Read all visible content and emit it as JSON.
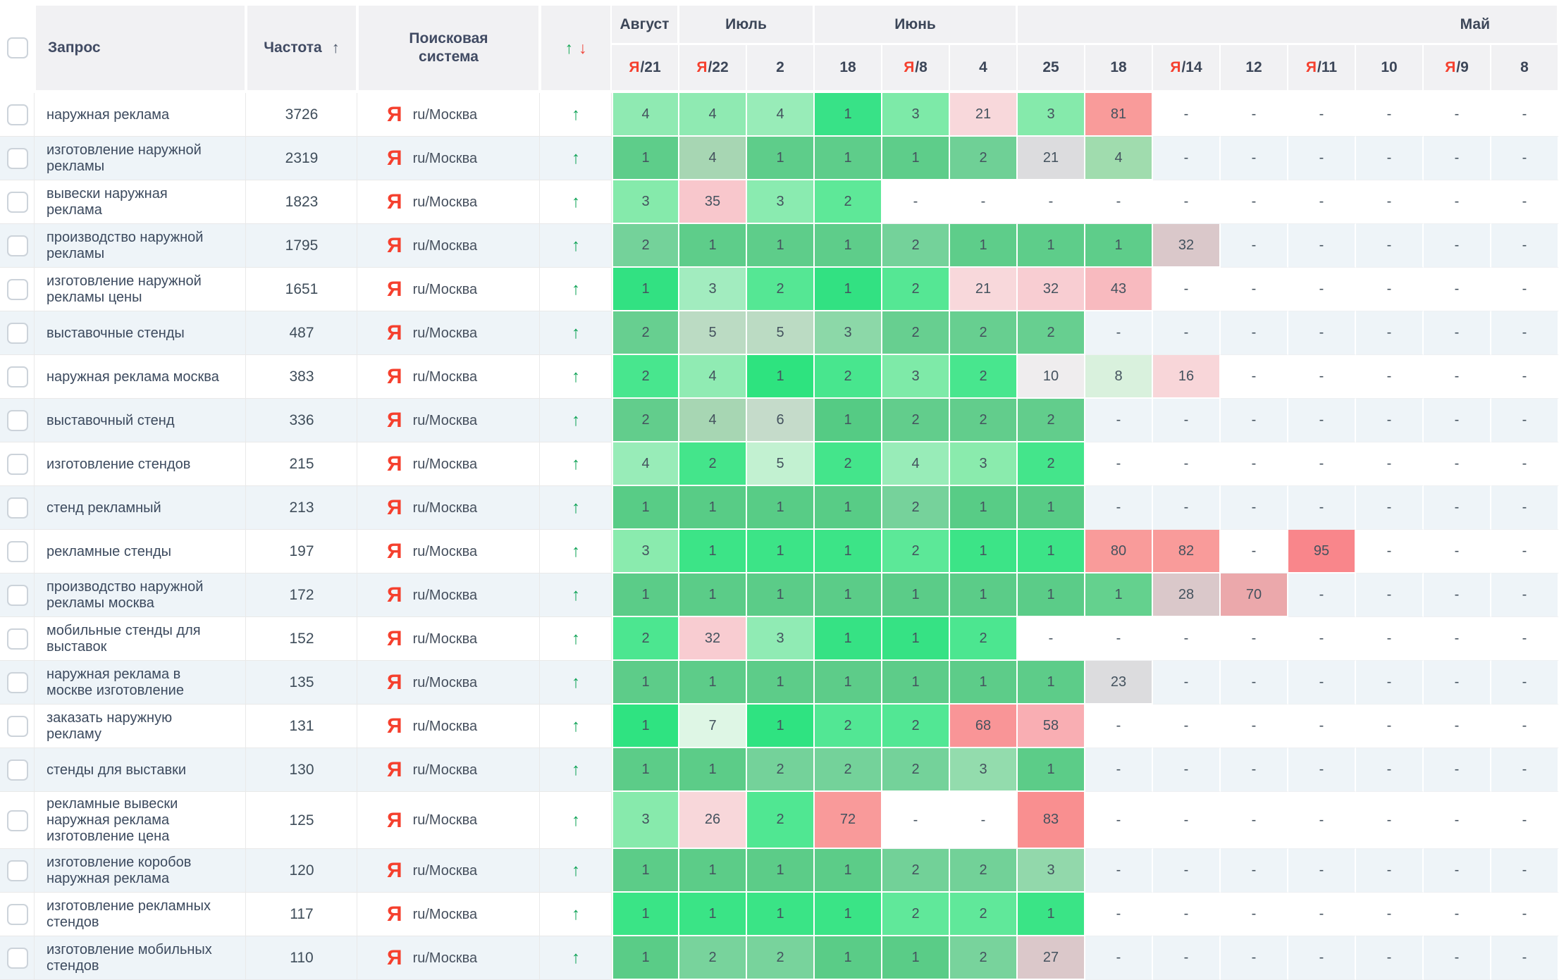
{
  "header": {
    "query": "Запрос",
    "frequency": "Частота",
    "sort_arrow": "↑",
    "engine": "Поисковая система",
    "trend_up": "↑",
    "trend_down": "↓",
    "months": [
      {
        "label": "Август",
        "span": 1
      },
      {
        "label": "Июль",
        "span": 2
      },
      {
        "label": "Июнь",
        "span": 3
      },
      {
        "label": "Май",
        "span": 8
      }
    ],
    "dates": [
      {
        "yandex": true,
        "day": "21"
      },
      {
        "yandex": true,
        "day": "22"
      },
      {
        "yandex": false,
        "day": "2"
      },
      {
        "yandex": false,
        "day": "18"
      },
      {
        "yandex": true,
        "day": "8"
      },
      {
        "yandex": false,
        "day": "4"
      },
      {
        "yandex": false,
        "day": "25"
      },
      {
        "yandex": false,
        "day": "18"
      },
      {
        "yandex": true,
        "day": "14"
      },
      {
        "yandex": false,
        "day": "12"
      },
      {
        "yandex": true,
        "day": "11"
      },
      {
        "yandex": false,
        "day": "10"
      },
      {
        "yandex": true,
        "day": "9"
      },
      {
        "yandex": false,
        "day": "8"
      }
    ]
  },
  "row_defaults": {
    "engine_icon": "Я",
    "engine_label": "ru/Москва",
    "trend": "↑",
    "empty": "-"
  },
  "colors": {
    "yandex_red": "#f5402e",
    "trend_green": "#0aa153",
    "header_bg": "#f1f1f3",
    "stripe": "#eef4f8",
    "salmon": "#f99b9a",
    "gray_cell": "#dcdcde"
  },
  "rows": [
    {
      "query": "наружная реклама",
      "frequency": "3726",
      "cells": [
        {
          "v": "4",
          "bg": "#8feab2"
        },
        {
          "v": "4",
          "bg": "#8feab2"
        },
        {
          "v": "4",
          "bg": "#98ecb8"
        },
        {
          "v": "1",
          "bg": "#38e287"
        },
        {
          "v": "3",
          "bg": "#7deaa8"
        },
        {
          "v": "21",
          "bg": "#f8d8db"
        },
        {
          "v": "3",
          "bg": "#85eaab"
        },
        {
          "v": "81",
          "bg": "#f99b9a"
        },
        {
          "v": "-"
        },
        {
          "v": "-"
        },
        {
          "v": "-"
        },
        {
          "v": "-"
        },
        {
          "v": "-"
        },
        {
          "v": "-"
        }
      ]
    },
    {
      "query": "изготовление наружной рекламы",
      "frequency": "2319",
      "cells": [
        {
          "v": "1",
          "bg": "#5ecd8a"
        },
        {
          "v": "4",
          "bg": "#a7d6b3"
        },
        {
          "v": "1",
          "bg": "#5ecd8a"
        },
        {
          "v": "1",
          "bg": "#5ecd8a"
        },
        {
          "v": "1",
          "bg": "#5ecd8a"
        },
        {
          "v": "2",
          "bg": "#6fd096"
        },
        {
          "v": "21",
          "bg": "#dcdcde"
        },
        {
          "v": "4",
          "bg": "#a0dcae"
        },
        {
          "v": "-"
        },
        {
          "v": "-"
        },
        {
          "v": "-"
        },
        {
          "v": "-"
        },
        {
          "v": "-"
        },
        {
          "v": "-"
        }
      ]
    },
    {
      "query": "вывески наружная реклама",
      "frequency": "1823",
      "cells": [
        {
          "v": "3",
          "bg": "#85eaab"
        },
        {
          "v": "35",
          "bg": "#f8c7cc"
        },
        {
          "v": "3",
          "bg": "#8aebb0"
        },
        {
          "v": "2",
          "bg": "#5ee898"
        },
        {
          "v": "-"
        },
        {
          "v": "-"
        },
        {
          "v": "-"
        },
        {
          "v": "-"
        },
        {
          "v": "-"
        },
        {
          "v": "-"
        },
        {
          "v": "-"
        },
        {
          "v": "-"
        },
        {
          "v": "-"
        },
        {
          "v": "-"
        }
      ]
    },
    {
      "query": "производство наружной рекламы",
      "frequency": "1795",
      "cells": [
        {
          "v": "2",
          "bg": "#74d29a"
        },
        {
          "v": "1",
          "bg": "#5ecd8a"
        },
        {
          "v": "1",
          "bg": "#5ecd8a"
        },
        {
          "v": "1",
          "bg": "#5ecd8a"
        },
        {
          "v": "2",
          "bg": "#74d29a"
        },
        {
          "v": "1",
          "bg": "#5ecd8a"
        },
        {
          "v": "1",
          "bg": "#5ecd8a"
        },
        {
          "v": "1",
          "bg": "#5ecd8a"
        },
        {
          "v": "32",
          "bg": "#dac8ca"
        },
        {
          "v": "-"
        },
        {
          "v": "-"
        },
        {
          "v": "-"
        },
        {
          "v": "-"
        },
        {
          "v": "-"
        }
      ]
    },
    {
      "query": "изготовление наружной рекламы цены",
      "frequency": "1651",
      "cells": [
        {
          "v": "1",
          "bg": "#32e182"
        },
        {
          "v": "3",
          "bg": "#a2ecbf"
        },
        {
          "v": "2",
          "bg": "#55e794"
        },
        {
          "v": "1",
          "bg": "#32e182"
        },
        {
          "v": "2",
          "bg": "#55e794"
        },
        {
          "v": "21",
          "bg": "#f8d8db"
        },
        {
          "v": "32",
          "bg": "#f8cdd2"
        },
        {
          "v": "43",
          "bg": "#f8babf"
        },
        {
          "v": "-"
        },
        {
          "v": "-"
        },
        {
          "v": "-"
        },
        {
          "v": "-"
        },
        {
          "v": "-"
        },
        {
          "v": "-"
        }
      ]
    },
    {
      "query": "выставочные стенды",
      "frequency": "487",
      "cells": [
        {
          "v": "2",
          "bg": "#67cf90"
        },
        {
          "v": "5",
          "bg": "#bbdbc3"
        },
        {
          "v": "5",
          "bg": "#bbdbc3"
        },
        {
          "v": "3",
          "bg": "#8cd8a8"
        },
        {
          "v": "2",
          "bg": "#67cf90"
        },
        {
          "v": "2",
          "bg": "#67cf90"
        },
        {
          "v": "2",
          "bg": "#67cf90"
        },
        {
          "v": "-"
        },
        {
          "v": "-"
        },
        {
          "v": "-"
        },
        {
          "v": "-"
        },
        {
          "v": "-"
        },
        {
          "v": "-"
        },
        {
          "v": "-"
        }
      ]
    },
    {
      "query": "наружная реклама москва",
      "frequency": "383",
      "cells": [
        {
          "v": "2",
          "bg": "#48e68e"
        },
        {
          "v": "4",
          "bg": "#90ebb3"
        },
        {
          "v": "1",
          "bg": "#2ee37f"
        },
        {
          "v": "2",
          "bg": "#48e68e"
        },
        {
          "v": "3",
          "bg": "#7eeaa8"
        },
        {
          "v": "2",
          "bg": "#48e68e"
        },
        {
          "v": "10",
          "bg": "#efedee"
        },
        {
          "v": "8",
          "bg": "#d9f1dd"
        },
        {
          "v": "16",
          "bg": "#f8d6d9"
        },
        {
          "v": "-"
        },
        {
          "v": "-"
        },
        {
          "v": "-"
        },
        {
          "v": "-"
        },
        {
          "v": "-"
        }
      ]
    },
    {
      "query": "выставочный стенд",
      "frequency": "336",
      "cells": [
        {
          "v": "2",
          "bg": "#62cd8c"
        },
        {
          "v": "4",
          "bg": "#a7d6b3"
        },
        {
          "v": "6",
          "bg": "#c5dbca"
        },
        {
          "v": "1",
          "bg": "#55cb84"
        },
        {
          "v": "2",
          "bg": "#62cd8c"
        },
        {
          "v": "2",
          "bg": "#62cd8c"
        },
        {
          "v": "2",
          "bg": "#62cd8c"
        },
        {
          "v": "-"
        },
        {
          "v": "-"
        },
        {
          "v": "-"
        },
        {
          "v": "-"
        },
        {
          "v": "-"
        },
        {
          "v": "-"
        },
        {
          "v": "-"
        }
      ]
    },
    {
      "query": "изготовление стендов",
      "frequency": "215",
      "cells": [
        {
          "v": "4",
          "bg": "#98ecb8"
        },
        {
          "v": "2",
          "bg": "#44e58b"
        },
        {
          "v": "5",
          "bg": "#c2f1d1"
        },
        {
          "v": "2",
          "bg": "#44e58b"
        },
        {
          "v": "4",
          "bg": "#98ecb8"
        },
        {
          "v": "3",
          "bg": "#8aebad"
        },
        {
          "v": "2",
          "bg": "#44e58b"
        },
        {
          "v": "-"
        },
        {
          "v": "-"
        },
        {
          "v": "-"
        },
        {
          "v": "-"
        },
        {
          "v": "-"
        },
        {
          "v": "-"
        },
        {
          "v": "-"
        }
      ]
    },
    {
      "query": "стенд рекламный",
      "frequency": "213",
      "cells": [
        {
          "v": "1",
          "bg": "#58cc86"
        },
        {
          "v": "1",
          "bg": "#58cc86"
        },
        {
          "v": "1",
          "bg": "#58cc86"
        },
        {
          "v": "1",
          "bg": "#58cc86"
        },
        {
          "v": "2",
          "bg": "#76d29b"
        },
        {
          "v": "1",
          "bg": "#58cc86"
        },
        {
          "v": "1",
          "bg": "#58cc86"
        },
        {
          "v": "-"
        },
        {
          "v": "-"
        },
        {
          "v": "-"
        },
        {
          "v": "-"
        },
        {
          "v": "-"
        },
        {
          "v": "-"
        },
        {
          "v": "-"
        }
      ]
    },
    {
      "query": "рекламные стенды",
      "frequency": "197",
      "cells": [
        {
          "v": "3",
          "bg": "#8aebae"
        },
        {
          "v": "1",
          "bg": "#3ce487"
        },
        {
          "v": "1",
          "bg": "#3ce487"
        },
        {
          "v": "1",
          "bg": "#3ce487"
        },
        {
          "v": "2",
          "bg": "#5ce898"
        },
        {
          "v": "1",
          "bg": "#3ce487"
        },
        {
          "v": "1",
          "bg": "#3ce487"
        },
        {
          "v": "80",
          "bg": "#f99b9a"
        },
        {
          "v": "82",
          "bg": "#f99b9a"
        },
        {
          "v": "-"
        },
        {
          "v": "95",
          "bg": "#f9868b"
        },
        {
          "v": "-"
        },
        {
          "v": "-"
        },
        {
          "v": "-"
        }
      ]
    },
    {
      "query": "производство наружной рекламы москва",
      "frequency": "172",
      "cells": [
        {
          "v": "1",
          "bg": "#5bcc88"
        },
        {
          "v": "1",
          "bg": "#5bcc88"
        },
        {
          "v": "1",
          "bg": "#5bcc88"
        },
        {
          "v": "1",
          "bg": "#5bcc88"
        },
        {
          "v": "1",
          "bg": "#5bcc88"
        },
        {
          "v": "1",
          "bg": "#5bcc88"
        },
        {
          "v": "1",
          "bg": "#5bcc88"
        },
        {
          "v": "1",
          "bg": "#64d18e"
        },
        {
          "v": "28",
          "bg": "#dac8ca"
        },
        {
          "v": "70",
          "bg": "#eba8ab"
        },
        {
          "v": "-"
        },
        {
          "v": "-"
        },
        {
          "v": "-"
        },
        {
          "v": "-"
        }
      ]
    },
    {
      "query": "мобильные стенды для выставок",
      "frequency": "152",
      "cells": [
        {
          "v": "2",
          "bg": "#4ce690"
        },
        {
          "v": "32",
          "bg": "#f8ccd1"
        },
        {
          "v": "3",
          "bg": "#90ebb4"
        },
        {
          "v": "1",
          "bg": "#36e284"
        },
        {
          "v": "1",
          "bg": "#36e284"
        },
        {
          "v": "2",
          "bg": "#4ce690"
        },
        {
          "v": "-"
        },
        {
          "v": "-"
        },
        {
          "v": "-"
        },
        {
          "v": "-"
        },
        {
          "v": "-"
        },
        {
          "v": "-"
        },
        {
          "v": "-"
        },
        {
          "v": "-"
        }
      ]
    },
    {
      "query": "наружная реклама в москве изготовление",
      "frequency": "135",
      "cells": [
        {
          "v": "1",
          "bg": "#5dcc89"
        },
        {
          "v": "1",
          "bg": "#5dcc89"
        },
        {
          "v": "1",
          "bg": "#5dcc89"
        },
        {
          "v": "1",
          "bg": "#5dcc89"
        },
        {
          "v": "1",
          "bg": "#5dcc89"
        },
        {
          "v": "1",
          "bg": "#5dcc89"
        },
        {
          "v": "1",
          "bg": "#5dcc89"
        },
        {
          "v": "23",
          "bg": "#dcdcde"
        },
        {
          "v": "-"
        },
        {
          "v": "-"
        },
        {
          "v": "-"
        },
        {
          "v": "-"
        },
        {
          "v": "-"
        },
        {
          "v": "-"
        }
      ]
    },
    {
      "query": "заказать наружную рекламу",
      "frequency": "131",
      "cells": [
        {
          "v": "1",
          "bg": "#2fe381"
        },
        {
          "v": "7",
          "bg": "#def6e5"
        },
        {
          "v": "1",
          "bg": "#2fe381"
        },
        {
          "v": "2",
          "bg": "#52e794"
        },
        {
          "v": "2",
          "bg": "#52e794"
        },
        {
          "v": "68",
          "bg": "#f99597"
        },
        {
          "v": "58",
          "bg": "#f9aeb3"
        },
        {
          "v": "-"
        },
        {
          "v": "-"
        },
        {
          "v": "-"
        },
        {
          "v": "-"
        },
        {
          "v": "-"
        },
        {
          "v": "-"
        },
        {
          "v": "-"
        }
      ]
    },
    {
      "query": "стенды для выставки",
      "frequency": "130",
      "cells": [
        {
          "v": "1",
          "bg": "#5ccc88"
        },
        {
          "v": "1",
          "bg": "#5ccc88"
        },
        {
          "v": "2",
          "bg": "#74d29a"
        },
        {
          "v": "2",
          "bg": "#74d29a"
        },
        {
          "v": "2",
          "bg": "#74d29a"
        },
        {
          "v": "3",
          "bg": "#93dcad"
        },
        {
          "v": "1",
          "bg": "#5ccc88"
        },
        {
          "v": "-"
        },
        {
          "v": "-"
        },
        {
          "v": "-"
        },
        {
          "v": "-"
        },
        {
          "v": "-"
        },
        {
          "v": "-"
        },
        {
          "v": "-"
        }
      ]
    },
    {
      "query": "рекламные вывески наружная реклама изготовление цена",
      "frequency": "125",
      "cells": [
        {
          "v": "3",
          "bg": "#87eaac"
        },
        {
          "v": "26",
          "bg": "#f8d7da"
        },
        {
          "v": "2",
          "bg": "#50e792"
        },
        {
          "v": "72",
          "bg": "#f99a9a"
        },
        {
          "v": "-"
        },
        {
          "v": "-"
        },
        {
          "v": "83",
          "bg": "#f98f90"
        },
        {
          "v": "-"
        },
        {
          "v": "-"
        },
        {
          "v": "-"
        },
        {
          "v": "-"
        },
        {
          "v": "-"
        },
        {
          "v": "-"
        },
        {
          "v": "-"
        }
      ]
    },
    {
      "query": "изготовление коробов наружная реклама",
      "frequency": "120",
      "cells": [
        {
          "v": "1",
          "bg": "#5ccc88"
        },
        {
          "v": "1",
          "bg": "#5ccc88"
        },
        {
          "v": "1",
          "bg": "#5ccc88"
        },
        {
          "v": "1",
          "bg": "#5ccc88"
        },
        {
          "v": "2",
          "bg": "#72d198"
        },
        {
          "v": "2",
          "bg": "#72d198"
        },
        {
          "v": "3",
          "bg": "#92d8ab"
        },
        {
          "v": "-"
        },
        {
          "v": "-"
        },
        {
          "v": "-"
        },
        {
          "v": "-"
        },
        {
          "v": "-"
        },
        {
          "v": "-"
        },
        {
          "v": "-"
        }
      ]
    },
    {
      "query": "изготовление рекламных стендов",
      "frequency": "117",
      "cells": [
        {
          "v": "1",
          "bg": "#3ae486"
        },
        {
          "v": "1",
          "bg": "#3ae486"
        },
        {
          "v": "1",
          "bg": "#3ae486"
        },
        {
          "v": "1",
          "bg": "#3ae486"
        },
        {
          "v": "2",
          "bg": "#60e89a"
        },
        {
          "v": "2",
          "bg": "#60e89a"
        },
        {
          "v": "1",
          "bg": "#3ae486"
        },
        {
          "v": "-"
        },
        {
          "v": "-"
        },
        {
          "v": "-"
        },
        {
          "v": "-"
        },
        {
          "v": "-"
        },
        {
          "v": "-"
        },
        {
          "v": "-"
        }
      ]
    },
    {
      "query": "изготовление мобильных стендов",
      "frequency": "110",
      "cells": [
        {
          "v": "1",
          "bg": "#5acc87"
        },
        {
          "v": "2",
          "bg": "#78d39c"
        },
        {
          "v": "2",
          "bg": "#78d39c"
        },
        {
          "v": "1",
          "bg": "#5acc87"
        },
        {
          "v": "1",
          "bg": "#5acc87"
        },
        {
          "v": "2",
          "bg": "#78d39c"
        },
        {
          "v": "27",
          "bg": "#dbc8ca"
        },
        {
          "v": "-"
        },
        {
          "v": "-"
        },
        {
          "v": "-"
        },
        {
          "v": "-"
        },
        {
          "v": "-"
        },
        {
          "v": "-"
        },
        {
          "v": "-"
        }
      ]
    }
  ]
}
